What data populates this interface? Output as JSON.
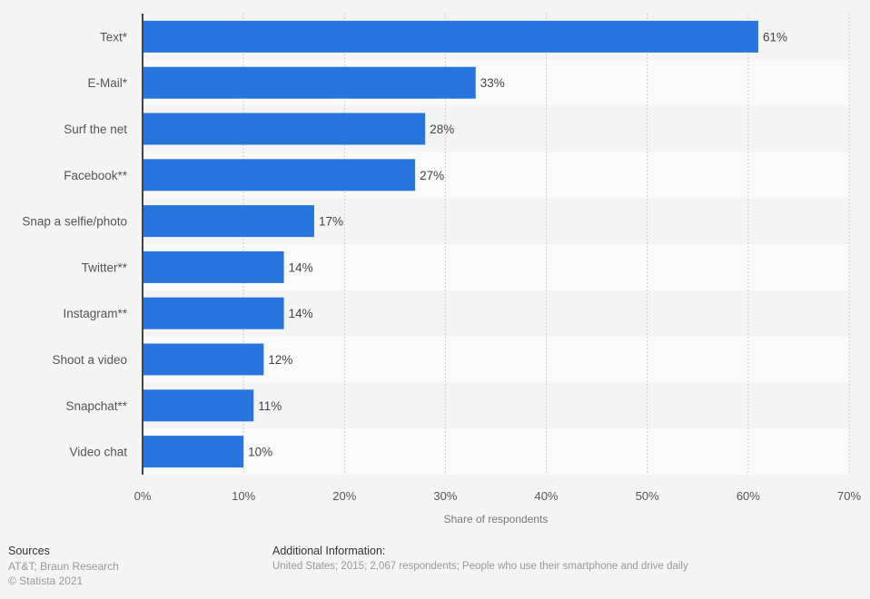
{
  "chart_data": {
    "type": "bar",
    "orientation": "horizontal",
    "categories": [
      "Text*",
      "E-Mail*",
      "Surf the net",
      "Facebook**",
      "Snap a selfie/photo",
      "Twitter**",
      "Instagram**",
      "Shoot a video",
      "Snapchat**",
      "Video chat"
    ],
    "values": [
      61,
      33,
      28,
      27,
      17,
      14,
      14,
      12,
      11,
      10
    ],
    "data_labels": [
      "61%",
      "33%",
      "28%",
      "27%",
      "17%",
      "14%",
      "14%",
      "12%",
      "11%",
      "10%"
    ],
    "xlabel": "Share of respondents",
    "ylabel": "",
    "xlim": [
      0,
      70
    ],
    "xticks": [
      "0%",
      "10%",
      "20%",
      "30%",
      "40%",
      "50%",
      "60%",
      "70%"
    ],
    "grid": true,
    "bar_color": "#2876dd"
  },
  "footer": {
    "sources_title": "Sources",
    "sources_text": "AT&T; Braun Research",
    "copyright": "© Statista 2021",
    "additional_title": "Additional Information:",
    "additional_text": "United States; 2015; 2,067 respondents; People who use their smartphone and drive daily"
  }
}
